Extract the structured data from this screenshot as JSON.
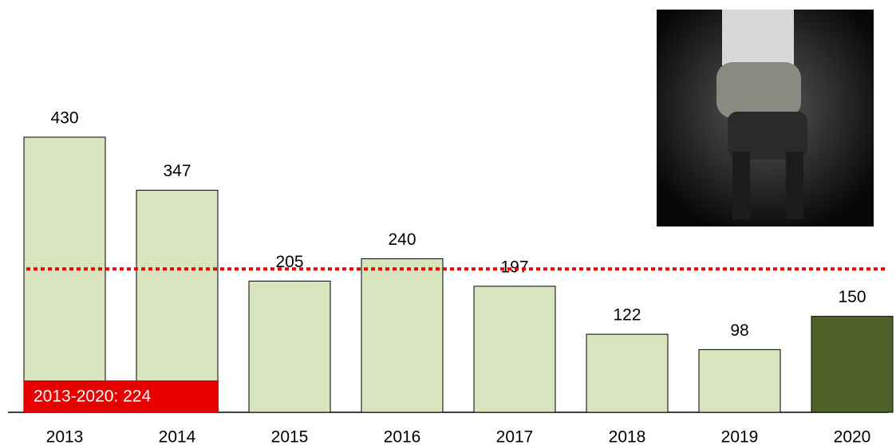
{
  "chart_data": {
    "type": "bar",
    "categories": [
      "2013",
      "2014",
      "2015",
      "2016",
      "2017",
      "2018",
      "2019",
      "2020"
    ],
    "values": [
      430,
      347,
      205,
      240,
      197,
      122,
      98,
      150
    ],
    "colors": [
      "#d7e4bd",
      "#d7e4bd",
      "#d7e4bd",
      "#d7e4bd",
      "#d7e4bd",
      "#d7e4bd",
      "#d7e4bd",
      "#4f6228"
    ],
    "reference_line": {
      "value": 224,
      "label": "2013-2020: 224",
      "color": "#e60000"
    }
  }
}
